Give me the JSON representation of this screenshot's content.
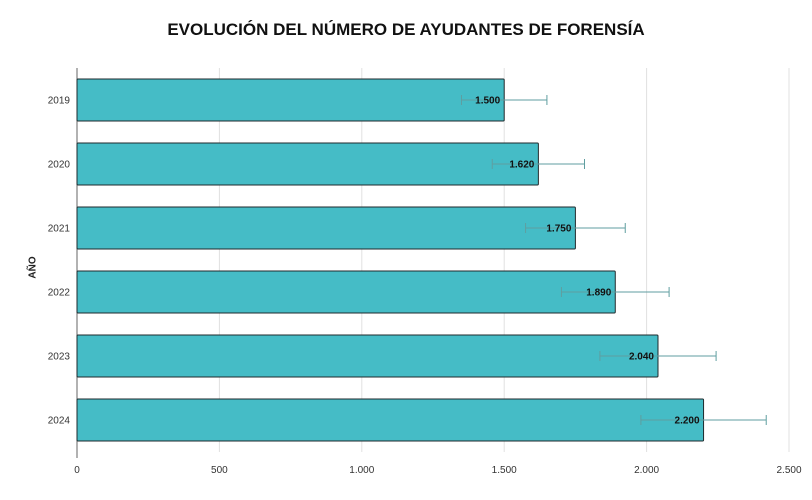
{
  "chart_data": {
    "type": "bar",
    "orientation": "horizontal",
    "title": "EVOLUCIÓN DEL NÚMERO DE AYUDANTES DE FORENSÍA",
    "xlabel": "",
    "ylabel": "AÑO",
    "categories": [
      "2019",
      "2020",
      "2021",
      "2022",
      "2023",
      "2024"
    ],
    "values": [
      1500,
      1620,
      1750,
      1890,
      2040,
      2200
    ],
    "data_labels": [
      "1.500",
      "1.620",
      "1.750",
      "1.890",
      "2.040",
      "2.200"
    ],
    "error_bars": {
      "type": "percent",
      "value": 10
    },
    "xlim": [
      0,
      2500
    ],
    "xticks": [
      0,
      500,
      1000,
      1500,
      2000,
      2500
    ],
    "xtick_labels": [
      "0",
      "500",
      "1.000",
      "1.500",
      "2.000",
      "2.500"
    ],
    "grid": true,
    "colors": {
      "bar": "#45bcc6",
      "bar_border": "#1f2a2c",
      "error_bar": "#5f9ea0",
      "grid": "#e0e0e0"
    }
  }
}
